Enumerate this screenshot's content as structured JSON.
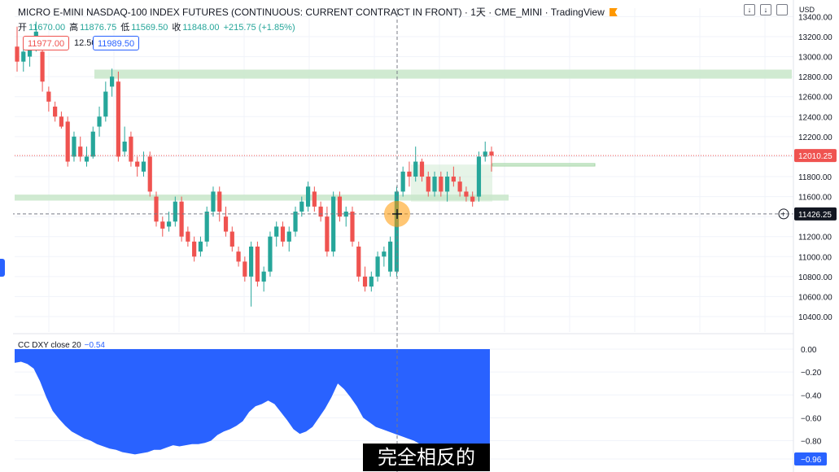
{
  "header": {
    "title": "MICRO E-MINI NASDAQ-100 INDEX FUTURES (CONTINUOUS: CURRENT CONTRACT IN FRONT) · 1天 · CME_MINI · TradingView",
    "ohlc": {
      "open_label": "开",
      "open": "11670.00",
      "high_label": "高",
      "high": "11876.75",
      "low_label": "低",
      "low": "11569.50",
      "close_label": "收",
      "close": "11848.00",
      "change": "+215.75 (+1.85%)"
    },
    "sell_price": "11977.00",
    "spread": "12.50",
    "buy_price": "11989.50",
    "currency": "USD"
  },
  "price_axis": {
    "ticks": [
      "13400.00",
      "13200.00",
      "13000.00",
      "12800.00",
      "12600.00",
      "12400.00",
      "12200.00",
      "12000.00",
      "11800.00",
      "11600.00",
      "11400.00",
      "11200.00",
      "11000.00",
      "10800.00",
      "10600.00",
      "10400.00"
    ],
    "last_price": "12010.25",
    "crosshair_price": "11426.25"
  },
  "indicator": {
    "label": "CC DXY close 20",
    "value": "−0.54",
    "ticks": [
      "0.00",
      "−0.20",
      "−0.40",
      "−0.60",
      "−0.80",
      "−0.96"
    ],
    "last_value": "−0.96"
  },
  "subtitle": "完全相反的",
  "colors": {
    "up": "#26a69a",
    "down": "#ef5350",
    "zone": "#c8e6c9",
    "indicator_fill": "#2962ff"
  },
  "chart_data": {
    "type": "candlestick",
    "price_ylim": [
      10300,
      13450
    ],
    "indicator_ylim": [
      -0.96,
      0.0
    ],
    "candles": [
      {
        "o": 13100,
        "h": 13300,
        "l": 12850,
        "c": 12950
      },
      {
        "o": 12950,
        "h": 13150,
        "l": 12850,
        "c": 13050
      },
      {
        "o": 13000,
        "h": 13200,
        "l": 12900,
        "c": 13150
      },
      {
        "o": 13100,
        "h": 13350,
        "l": 13050,
        "c": 13250
      },
      {
        "o": 13050,
        "h": 13200,
        "l": 12650,
        "c": 12750
      },
      {
        "o": 12650,
        "h": 12700,
        "l": 12450,
        "c": 12550
      },
      {
        "o": 12500,
        "h": 12550,
        "l": 12350,
        "c": 12400
      },
      {
        "o": 12400,
        "h": 12450,
        "l": 12280,
        "c": 12300
      },
      {
        "o": 12350,
        "h": 12400,
        "l": 11900,
        "c": 11950
      },
      {
        "o": 12000,
        "h": 12250,
        "l": 11950,
        "c": 12200
      },
      {
        "o": 12100,
        "h": 12200,
        "l": 11950,
        "c": 12000
      },
      {
        "o": 11950,
        "h": 12100,
        "l": 11900,
        "c": 12000
      },
      {
        "o": 12000,
        "h": 12300,
        "l": 11980,
        "c": 12250
      },
      {
        "o": 12300,
        "h": 12500,
        "l": 12200,
        "c": 12400
      },
      {
        "o": 12400,
        "h": 12750,
        "l": 12350,
        "c": 12650
      },
      {
        "o": 12700,
        "h": 12880,
        "l": 12600,
        "c": 12800
      },
      {
        "o": 12750,
        "h": 12850,
        "l": 11950,
        "c": 12000
      },
      {
        "o": 12050,
        "h": 12300,
        "l": 12000,
        "c": 12150
      },
      {
        "o": 12200,
        "h": 12250,
        "l": 11900,
        "c": 11950
      },
      {
        "o": 11950,
        "h": 12000,
        "l": 11800,
        "c": 11900
      },
      {
        "o": 11850,
        "h": 12050,
        "l": 11800,
        "c": 11950
      },
      {
        "o": 12000,
        "h": 12050,
        "l": 11600,
        "c": 11650
      },
      {
        "o": 11600,
        "h": 11650,
        "l": 11300,
        "c": 11350
      },
      {
        "o": 11350,
        "h": 11400,
        "l": 11200,
        "c": 11280
      },
      {
        "o": 11300,
        "h": 11450,
        "l": 11250,
        "c": 11350
      },
      {
        "o": 11350,
        "h": 11600,
        "l": 11300,
        "c": 11550
      },
      {
        "o": 11550,
        "h": 11600,
        "l": 11150,
        "c": 11200
      },
      {
        "o": 11250,
        "h": 11300,
        "l": 11100,
        "c": 11150
      },
      {
        "o": 11150,
        "h": 11200,
        "l": 10950,
        "c": 11000
      },
      {
        "o": 11050,
        "h": 11200,
        "l": 11000,
        "c": 11150
      },
      {
        "o": 11150,
        "h": 11500,
        "l": 11100,
        "c": 11450
      },
      {
        "o": 11450,
        "h": 11700,
        "l": 11400,
        "c": 11650
      },
      {
        "o": 11650,
        "h": 11700,
        "l": 11350,
        "c": 11450
      },
      {
        "o": 11400,
        "h": 11500,
        "l": 11200,
        "c": 11250
      },
      {
        "o": 11250,
        "h": 11300,
        "l": 11050,
        "c": 11100
      },
      {
        "o": 11050,
        "h": 11100,
        "l": 10900,
        "c": 10950
      },
      {
        "o": 10950,
        "h": 11000,
        "l": 10750,
        "c": 10800
      },
      {
        "o": 10800,
        "h": 11150,
        "l": 10500,
        "c": 11100
      },
      {
        "o": 11100,
        "h": 11150,
        "l": 10700,
        "c": 10750
      },
      {
        "o": 10750,
        "h": 10900,
        "l": 10650,
        "c": 10850
      },
      {
        "o": 10850,
        "h": 11250,
        "l": 10800,
        "c": 11200
      },
      {
        "o": 11200,
        "h": 11350,
        "l": 11100,
        "c": 11300
      },
      {
        "o": 11300,
        "h": 11350,
        "l": 11100,
        "c": 11150
      },
      {
        "o": 11150,
        "h": 11300,
        "l": 11050,
        "c": 11250
      },
      {
        "o": 11250,
        "h": 11500,
        "l": 11200,
        "c": 11450
      },
      {
        "o": 11450,
        "h": 11600,
        "l": 11400,
        "c": 11550
      },
      {
        "o": 11500,
        "h": 11750,
        "l": 11450,
        "c": 11700
      },
      {
        "o": 11650,
        "h": 11700,
        "l": 11450,
        "c": 11500
      },
      {
        "o": 11500,
        "h": 11550,
        "l": 11350,
        "c": 11400
      },
      {
        "o": 11400,
        "h": 11500,
        "l": 11000,
        "c": 11050
      },
      {
        "o": 11050,
        "h": 11650,
        "l": 11000,
        "c": 11600
      },
      {
        "o": 11600,
        "h": 11650,
        "l": 11350,
        "c": 11400
      },
      {
        "o": 11400,
        "h": 11500,
        "l": 11300,
        "c": 11450
      },
      {
        "o": 11450,
        "h": 11500,
        "l": 11100,
        "c": 11150
      },
      {
        "o": 11100,
        "h": 11150,
        "l": 10750,
        "c": 10800
      },
      {
        "o": 10800,
        "h": 10900,
        "l": 10650,
        "c": 10700
      },
      {
        "o": 10700,
        "h": 10850,
        "l": 10650,
        "c": 10800
      },
      {
        "o": 10800,
        "h": 11050,
        "l": 10750,
        "c": 11000
      },
      {
        "o": 11000,
        "h": 11100,
        "l": 10900,
        "c": 11050
      },
      {
        "o": 10850,
        "h": 11200,
        "l": 10800,
        "c": 11150
      },
      {
        "o": 10850,
        "h": 11700,
        "l": 10800,
        "c": 11650
      },
      {
        "o": 11650,
        "h": 11900,
        "l": 11600,
        "c": 11850
      },
      {
        "o": 11850,
        "h": 11950,
        "l": 11700,
        "c": 11800
      },
      {
        "o": 11800,
        "h": 12100,
        "l": 11750,
        "c": 11950
      },
      {
        "o": 11950,
        "h": 11980,
        "l": 11750,
        "c": 11800
      },
      {
        "o": 11800,
        "h": 11850,
        "l": 11600,
        "c": 11650
      },
      {
        "o": 11650,
        "h": 11850,
        "l": 11600,
        "c": 11800
      },
      {
        "o": 11800,
        "h": 11850,
        "l": 11600,
        "c": 11650
      },
      {
        "o": 11650,
        "h": 11850,
        "l": 11550,
        "c": 11800
      },
      {
        "o": 11800,
        "h": 11900,
        "l": 11700,
        "c": 11750
      },
      {
        "o": 11750,
        "h": 11800,
        "l": 11600,
        "c": 11650
      },
      {
        "o": 11650,
        "h": 11700,
        "l": 11550,
        "c": 11600
      },
      {
        "o": 11600,
        "h": 11650,
        "l": 11500,
        "c": 11550
      },
      {
        "o": 11600,
        "h": 12050,
        "l": 11550,
        "c": 12000
      },
      {
        "o": 12000,
        "h": 12150,
        "l": 11950,
        "c": 12050
      },
      {
        "o": 12050,
        "h": 12100,
        "l": 11850,
        "c": 12010
      }
    ],
    "horizontal_zones": [
      {
        "price_from": 12780,
        "price_to": 12870
      },
      {
        "price_from": 11560,
        "price_to": 11620
      },
      {
        "price_from": 11550,
        "price_to": 11920
      },
      {
        "price_from": 11910,
        "price_to": 11930
      }
    ],
    "indicator_values": [
      -0.12,
      -0.11,
      -0.13,
      -0.17,
      -0.28,
      -0.42,
      -0.54,
      -0.61,
      -0.67,
      -0.72,
      -0.75,
      -0.78,
      -0.8,
      -0.83,
      -0.85,
      -0.87,
      -0.88,
      -0.9,
      -0.91,
      -0.92,
      -0.91,
      -0.9,
      -0.88,
      -0.88,
      -0.86,
      -0.84,
      -0.85,
      -0.84,
      -0.83,
      -0.83,
      -0.82,
      -0.8,
      -0.75,
      -0.72,
      -0.7,
      -0.67,
      -0.63,
      -0.55,
      -0.5,
      -0.48,
      -0.45,
      -0.48,
      -0.55,
      -0.62,
      -0.7,
      -0.74,
      -0.72,
      -0.68,
      -0.6,
      -0.52,
      -0.42,
      -0.3,
      -0.35,
      -0.42,
      -0.5,
      -0.6,
      -0.64,
      -0.68,
      -0.7,
      -0.72,
      -0.74,
      -0.76,
      -0.78,
      -0.8,
      -0.83,
      -0.86,
      -0.9,
      -0.93,
      -0.95,
      -0.96,
      -0.96,
      -0.96,
      -0.96,
      -0.96,
      -0.96,
      -0.96
    ]
  }
}
